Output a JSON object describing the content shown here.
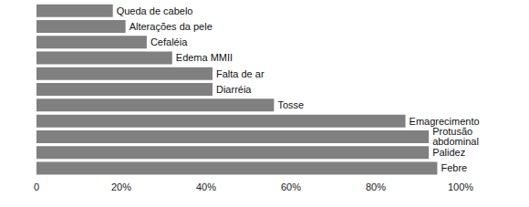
{
  "chart_data": {
    "type": "bar",
    "orientation": "horizontal",
    "categories": [
      "Queda de cabelo",
      "Alterações da pele",
      "Cefaléia",
      "Edema MMII",
      "Falta de ar",
      "Diarréia",
      "Tosse",
      "Emagrecimento",
      "Protusão abdominal",
      "Palidez",
      "Febre"
    ],
    "values": [
      18,
      21,
      26,
      32,
      41.5,
      41.5,
      56,
      87,
      92.5,
      92.5,
      94.5
    ],
    "color": "#808080",
    "xlim": [
      0,
      100
    ],
    "xticks": [
      0,
      {
        "value": 20,
        "label": "20%"
      },
      {
        "value": 40,
        "label": "40%"
      },
      {
        "value": 60,
        "label": "60%"
      },
      {
        "value": 80,
        "label": "80%"
      },
      {
        "value": 100,
        "label": "100%"
      }
    ],
    "grid": false,
    "tick_labels": "x"
  }
}
